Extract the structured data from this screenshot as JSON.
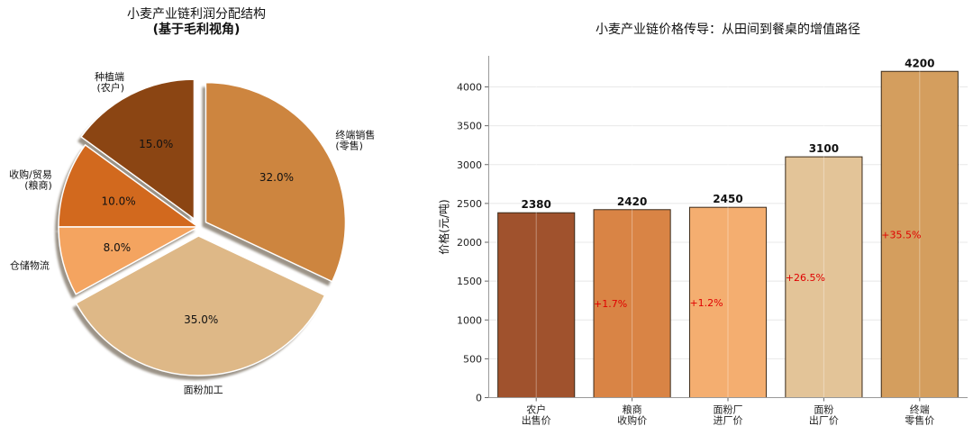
{
  "chart_data": [
    {
      "type": "pie",
      "title": "小麦产业链利润分配结构",
      "subtitle": "(基于毛利视角)",
      "slices": [
        {
          "label": [
            "种植端",
            "(农户)"
          ],
          "value": 15.0,
          "pct_text": "15.0%",
          "color": "#8B4513",
          "explode": true
        },
        {
          "label": [
            "收购/贸易",
            "(粮商)"
          ],
          "value": 10.0,
          "pct_text": "10.0%",
          "color": "#D2691E",
          "explode": false
        },
        {
          "label": [
            "仓储物流"
          ],
          "value": 8.0,
          "pct_text": "8.0%",
          "color": "#F4A460",
          "explode": false
        },
        {
          "label": [
            "面粉加工"
          ],
          "value": 35.0,
          "pct_text": "35.0%",
          "color": "#DEB887",
          "explode": true
        },
        {
          "label": [
            "终端销售",
            "(零售)"
          ],
          "value": 32.0,
          "pct_text": "32.0%",
          "color": "#CD853F",
          "explode": true
        }
      ]
    },
    {
      "type": "bar",
      "title": "小麦产业链价格传导：从田间到餐桌的增值路径",
      "xlabel": "",
      "ylabel": "价格(元/吨)",
      "ylim": [
        0,
        4400
      ],
      "yticks": [
        0,
        500,
        1000,
        1500,
        2000,
        2500,
        3000,
        3500,
        4000
      ],
      "grid": true,
      "categories": [
        [
          "农户",
          "出售价"
        ],
        [
          "粮商",
          "收购价"
        ],
        [
          "面粉厂",
          "进厂价"
        ],
        [
          "面粉",
          "出厂价"
        ],
        [
          "终端",
          "零售价"
        ]
      ],
      "values": [
        2380,
        2420,
        2450,
        3100,
        4200
      ],
      "value_labels": [
        "2380",
        "2420",
        "2450",
        "3100",
        "4200"
      ],
      "increase_labels": [
        "",
        "+1.7%",
        "+1.2%",
        "+26.5%",
        "+35.5%"
      ],
      "colors": [
        "#A0522D",
        "#D98445",
        "#F4AE70",
        "#E3C498",
        "#D49E5E"
      ]
    }
  ]
}
